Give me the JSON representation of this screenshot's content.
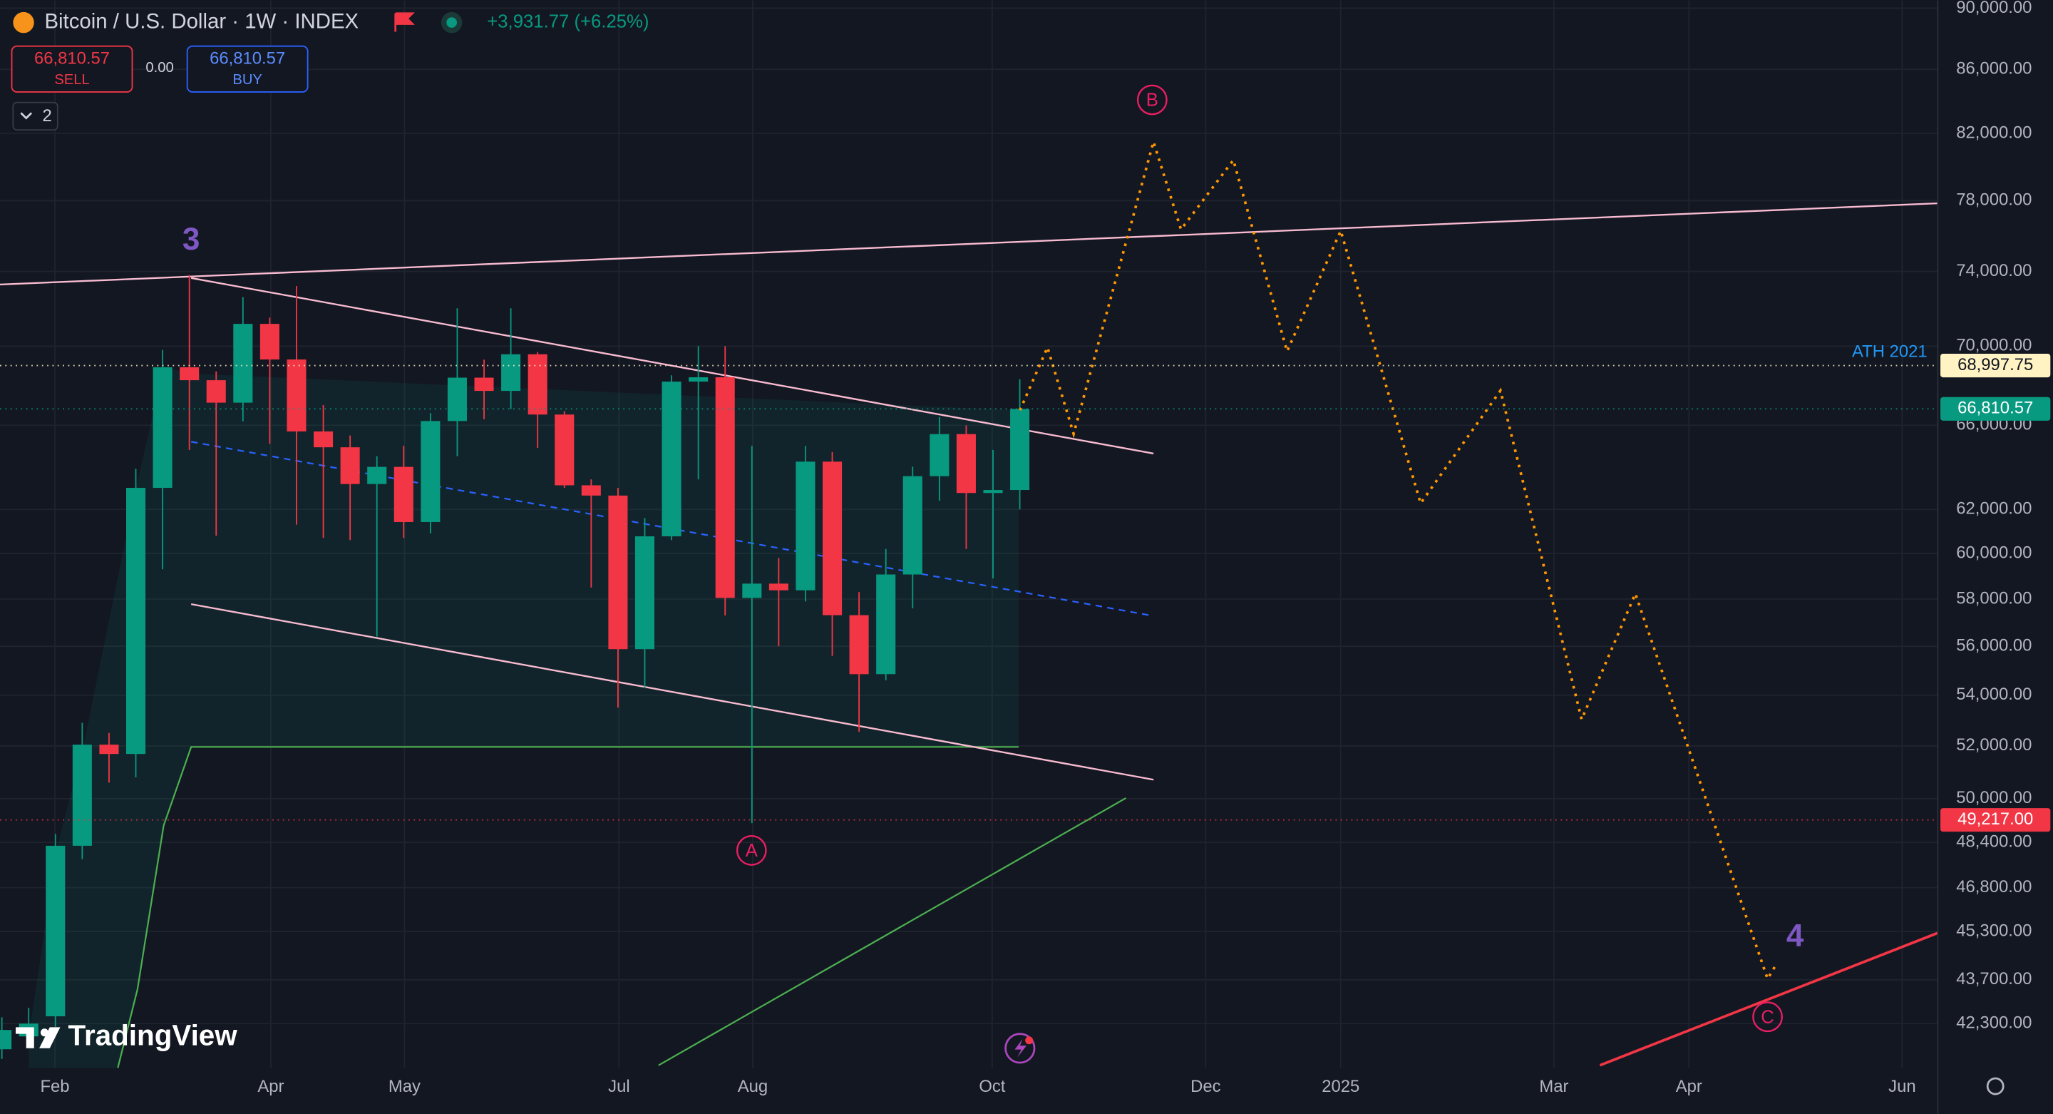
{
  "header": {
    "title": "Bitcoin / U.S. Dollar · 1W · INDEX",
    "change": "+3,931.77 (+6.25%)",
    "sell_price": "66,810.57",
    "sell_label": "SELL",
    "spread": "0.00",
    "buy_price": "66,810.57",
    "buy_label": "BUY",
    "indicators_count": "2"
  },
  "logo": "TradingView",
  "chart_data": {
    "type": "candlestick",
    "log_scale": true,
    "grid": true,
    "up_color": "#089981",
    "down_color": "#f23645",
    "x": [
      0,
      1,
      2,
      3,
      4,
      5,
      6,
      7,
      8,
      9,
      10,
      11,
      12,
      13,
      14,
      15,
      16,
      17,
      18,
      19,
      20,
      21,
      22,
      23,
      24,
      25,
      26,
      27,
      28,
      29,
      30,
      31,
      32,
      33,
      34,
      35,
      36,
      37,
      38
    ],
    "open": [
      41500,
      41900,
      42530,
      48280,
      52050,
      51690,
      63000,
      68910,
      68250,
      67120,
      71170,
      69310,
      65700,
      64930,
      63180,
      63990,
      61420,
      66210,
      68380,
      67710,
      69580,
      66530,
      63120,
      62640,
      55880,
      60770,
      68180,
      68400,
      58050,
      58670,
      58380,
      64240,
      57310,
      54850,
      59070,
      63550,
      65570,
      62760,
      62900
    ],
    "high": [
      42500,
      42800,
      48700,
      52900,
      52500,
      63900,
      69800,
      73800,
      68700,
      72600,
      71500,
      73200,
      67000,
      65500,
      64500,
      65000,
      66600,
      72000,
      69300,
      72000,
      69700,
      66700,
      63400,
      63000,
      61600,
      68500,
      70000,
      70000,
      65000,
      59800,
      65000,
      64700,
      58300,
      60200,
      64000,
      66400,
      66000,
      64800,
      68300
    ],
    "low": [
      41200,
      41600,
      42200,
      47800,
      50600,
      50800,
      59300,
      64800,
      60800,
      66200,
      65100,
      61300,
      60700,
      60600,
      56400,
      60700,
      60900,
      64500,
      66300,
      66800,
      64900,
      63000,
      58500,
      53500,
      54300,
      60600,
      63400,
      57300,
      49100,
      56000,
      57900,
      55600,
      52550,
      54600,
      57600,
      62400,
      60200,
      58900,
      62000
    ],
    "close": [
      42100,
      42300,
      48280,
      52050,
      51690,
      63000,
      68910,
      68250,
      67120,
      71170,
      69310,
      65700,
      64930,
      63180,
      63990,
      61420,
      66210,
      68380,
      67710,
      69580,
      66530,
      63120,
      62640,
      55880,
      60770,
      68180,
      68400,
      58050,
      58670,
      58380,
      64240,
      57310,
      54850,
      59070,
      63550,
      65570,
      62760,
      62900,
      66810.57
    ],
    "xlim": [
      -0.07,
      72.27
    ],
    "xticks": [
      {
        "value": 1.98,
        "label": "Feb"
      },
      {
        "value": 10.04,
        "label": "Apr"
      },
      {
        "value": 15.03,
        "label": "May"
      },
      {
        "value": 23.04,
        "label": "Jul"
      },
      {
        "value": 28.03,
        "label": "Aug"
      },
      {
        "value": 36.97,
        "label": "Oct"
      },
      {
        "value": 44.94,
        "label": "Dec"
      },
      {
        "value": 49.98,
        "label": "2025"
      },
      {
        "value": 57.94,
        "label": "Mar"
      },
      {
        "value": 62.98,
        "label": "Apr"
      },
      {
        "value": 70.94,
        "label": "Jun"
      }
    ],
    "ylim": [
      40930,
      90530
    ],
    "yticks": [
      {
        "value": 90000,
        "label": "90,000.00"
      },
      {
        "value": 86000,
        "label": "86,000.00"
      },
      {
        "value": 82000,
        "label": "82,000.00"
      },
      {
        "value": 78000,
        "label": "78,000.00"
      },
      {
        "value": 74000,
        "label": "74,000.00"
      },
      {
        "value": 70000,
        "label": "70,000.00"
      },
      {
        "value": 66000,
        "label": "66,000.00"
      },
      {
        "value": 62000,
        "label": "62,000.00"
      },
      {
        "value": 60000,
        "label": "60,000.00"
      },
      {
        "value": 58000,
        "label": "58,000.00"
      },
      {
        "value": 56000,
        "label": "56,000.00"
      },
      {
        "value": 54000,
        "label": "54,000.00"
      },
      {
        "value": 52000,
        "label": "52,000.00"
      },
      {
        "value": 50000,
        "label": "50,000.00"
      },
      {
        "value": 48400,
        "label": "48,400.00"
      },
      {
        "value": 46800,
        "label": "46,800.00"
      },
      {
        "value": 45300,
        "label": "45,300.00"
      },
      {
        "value": 43700,
        "label": "43,700.00"
      },
      {
        "value": 42300,
        "label": "42,300.00"
      }
    ],
    "price_lines": [
      {
        "value": 68997.75,
        "label": "68,997.75",
        "name": "ATH 2021",
        "color": "#fff3c4"
      },
      {
        "value": 66810.57,
        "label": "66,810.57",
        "color": "#089981"
      },
      {
        "value": 49217,
        "label": "49,217.00",
        "color": "#f23645"
      }
    ],
    "annotations": [
      "3",
      "4",
      "A",
      "B",
      "C"
    ]
  }
}
